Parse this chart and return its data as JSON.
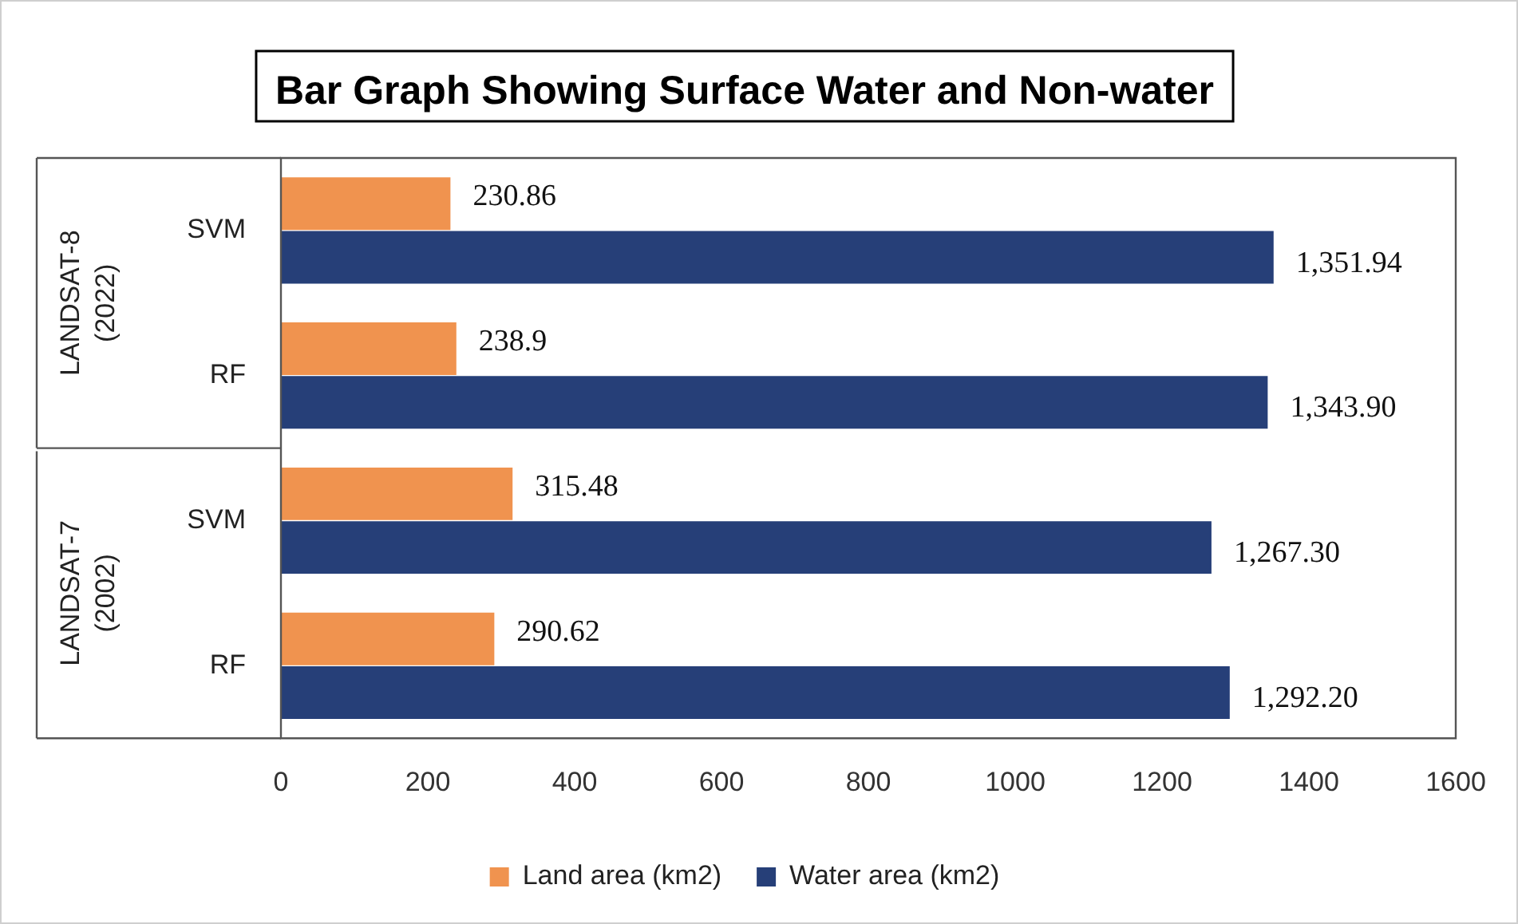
{
  "chart_data": {
    "type": "bar",
    "orientation": "horizontal",
    "title": "Bar Graph Showing Surface Water and Non-water",
    "categories": [
      "SVM",
      "RF",
      "SVM",
      "RF"
    ],
    "series": [
      {
        "name": "Land area (km2)",
        "color": "#f0934f",
        "values": [
          230.86,
          238.9,
          315.48,
          290.62
        ],
        "value_labels": [
          "230.86",
          "238.9",
          "315.48",
          "290.62"
        ]
      },
      {
        "name": "Water area (km2)",
        "color": "#263f78",
        "values": [
          1351.94,
          1343.9,
          1267.3,
          1292.2
        ],
        "value_labels": [
          "1,351.94",
          "1,343.90",
          "1,267.30",
          "1,292.20"
        ]
      }
    ],
    "annotations": [
      "LANDSAT-8 (2022)",
      "LANDSAT-7 (2002)"
    ],
    "xlim": [
      0,
      1600
    ],
    "xticks": [
      0,
      200,
      400,
      600,
      800,
      1000,
      1200,
      1400,
      1600
    ],
    "grid": false,
    "legend": "bottom"
  }
}
